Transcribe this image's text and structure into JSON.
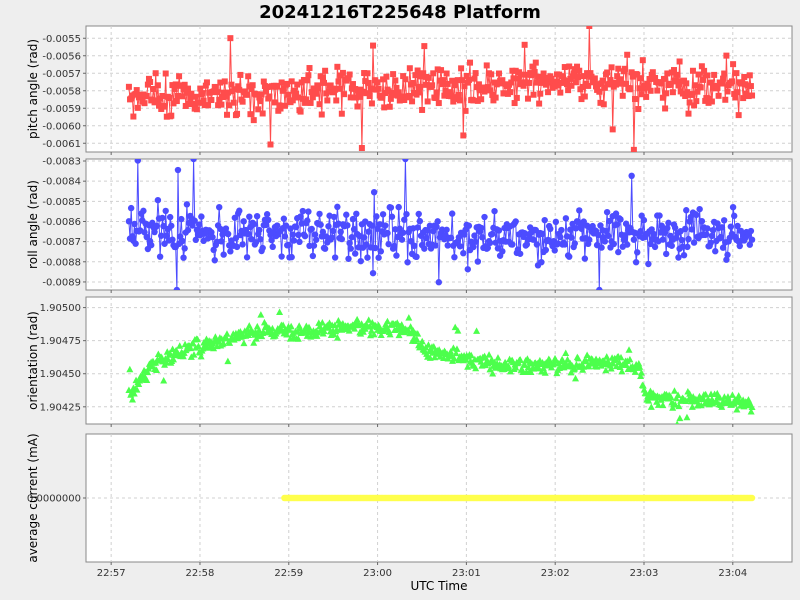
{
  "chart_data": {
    "type": "scatter",
    "title": "20241216T225648 Platform",
    "xlabel": "UTC Time",
    "x_ticks": [
      "22:57",
      "22:58",
      "22:59",
      "23:00",
      "23:01",
      "23:02",
      "23:03",
      "23:04"
    ],
    "x_range": [
      "22:56:43",
      "23:04:40"
    ],
    "grid": true,
    "panels": [
      {
        "name": "pitch",
        "ylabel": "pitch angle (rad)",
        "ylim": [
          -0.00615,
          -0.00543
        ],
        "y_ticks": [
          "-0.0055",
          "-0.0056",
          "-0.0057",
          "-0.0058",
          "-0.0059",
          "-0.0060",
          "-0.0061"
        ],
        "y_tick_values": [
          -0.0055,
          -0.0056,
          -0.0057,
          -0.0058,
          -0.0059,
          -0.006,
          -0.0061
        ],
        "color": "#ff4c4c",
        "marker": "square",
        "connected": true,
        "start": "22:57:12",
        "end": "23:04:13",
        "count": 560,
        "mean": -0.00578,
        "spread": 0.00011,
        "trend": [
          [
            0,
            -0.00584
          ],
          [
            0.4,
            -0.0058
          ],
          [
            0.7,
            -0.00574
          ],
          [
            1.0,
            -0.00578
          ]
        ]
      },
      {
        "name": "roll",
        "ylabel": "roll angle (rad)",
        "ylim": [
          -0.00894,
          -0.00829
        ],
        "y_ticks": [
          "-0.0083",
          "-0.0084",
          "-0.0085",
          "-0.0086",
          "-0.0087",
          "-0.0088",
          "-0.0089"
        ],
        "y_tick_values": [
          -0.0083,
          -0.0084,
          -0.0085,
          -0.0086,
          -0.0087,
          -0.0088,
          -0.0089
        ],
        "color": "#4c4cff",
        "marker": "circle",
        "connected": true,
        "start": "22:57:12",
        "end": "23:04:13",
        "count": 560,
        "mean": -0.00867,
        "spread": 0.00012,
        "trend": [
          [
            0,
            -0.00866
          ],
          [
            0.3,
            -0.00865
          ],
          [
            0.6,
            -0.00868
          ],
          [
            1.0,
            -0.00866
          ]
        ]
      },
      {
        "name": "orientation",
        "ylabel": "orientation (rad)",
        "ylim": [
          1.90412,
          1.90508
        ],
        "y_ticks": [
          "1.90500",
          "1.90475",
          "1.90450",
          "1.90425"
        ],
        "y_tick_values": [
          1.905,
          1.90475,
          1.9045,
          1.90425
        ],
        "color": "#4cff4c",
        "marker": "triangle",
        "connected": false,
        "start": "22:57:12",
        "end": "23:04:13",
        "count": 700,
        "mean": 1.90455,
        "spread": 6e-05,
        "trend": [
          [
            0,
            1.90435
          ],
          [
            0.05,
            1.90462
          ],
          [
            0.12,
            1.90472
          ],
          [
            0.2,
            1.90482
          ],
          [
            0.35,
            1.90485
          ],
          [
            0.45,
            1.90484
          ],
          [
            0.48,
            1.90468
          ],
          [
            0.6,
            1.90456
          ],
          [
            0.73,
            1.90458
          ],
          [
            0.78,
            1.9046
          ],
          [
            0.82,
            1.90454
          ],
          [
            0.83,
            1.90432
          ],
          [
            1.0,
            1.90428
          ]
        ]
      },
      {
        "name": "current",
        "ylabel": "average current (mA)",
        "ylim": [
          -1,
          1
        ],
        "y_ticks": [
          "0.0000000"
        ],
        "y_tick_values": [
          0
        ],
        "color": "#ffff4c",
        "marker": "circle",
        "connected": true,
        "start": "22:58:57",
        "end": "23:04:13",
        "count": 320,
        "mean": 0,
        "spread": 0,
        "trend": [
          [
            0,
            0
          ],
          [
            1,
            0
          ]
        ]
      }
    ]
  }
}
